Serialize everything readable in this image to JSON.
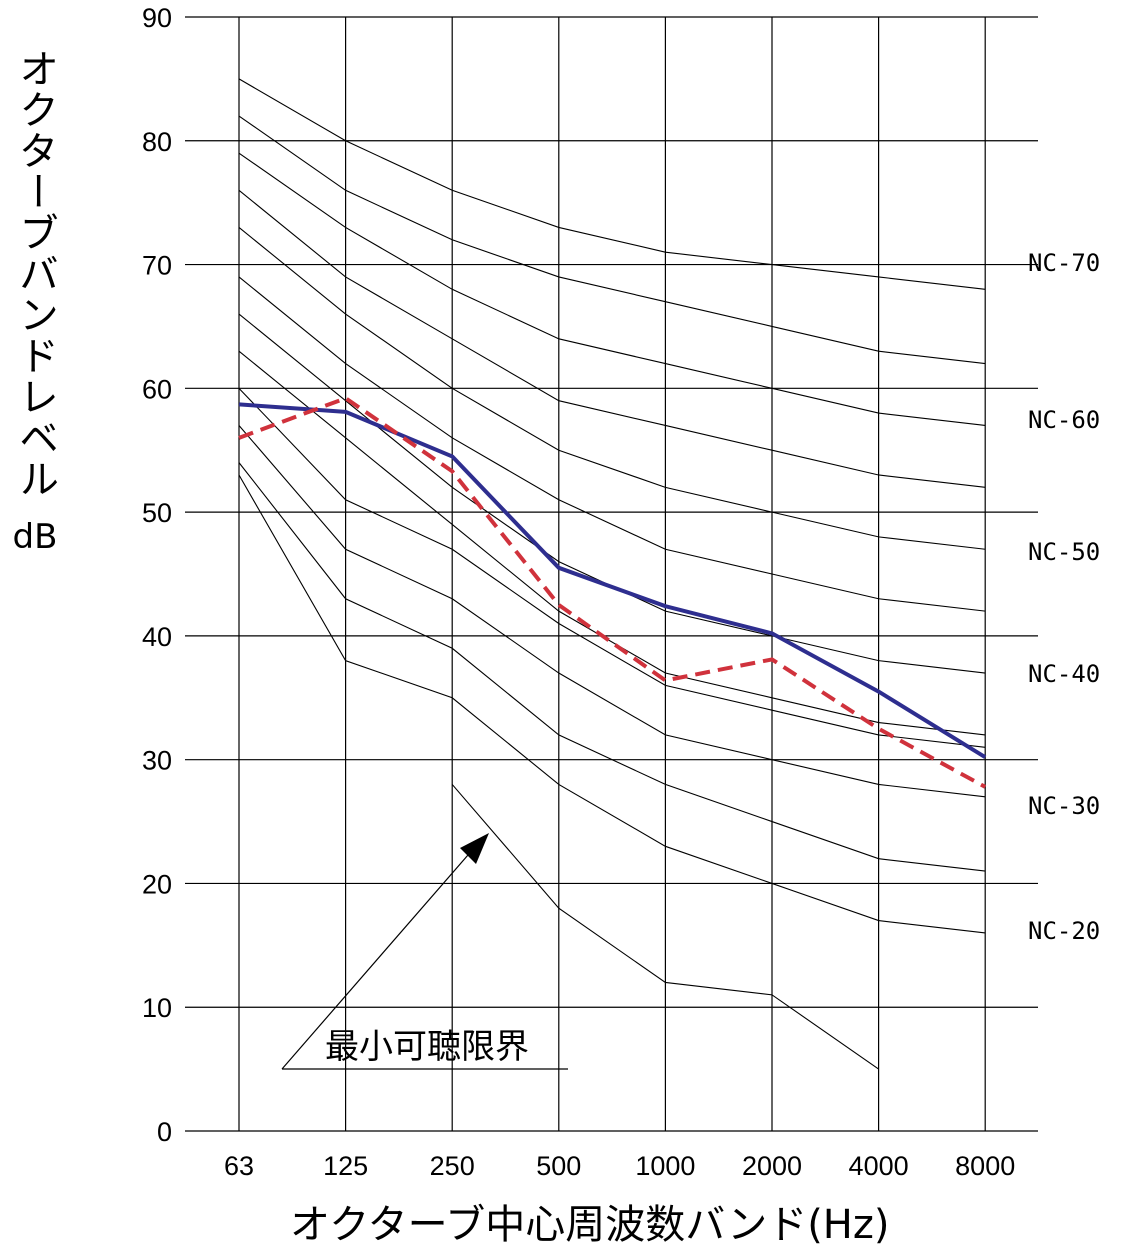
{
  "chart_data": {
    "type": "line",
    "title": "",
    "ylabel": "オクターブバンドレベル",
    "yunit": "dB",
    "xlabel": "オクターブ中心周波数バンド(Hz)",
    "categories": [
      "63",
      "125",
      "250",
      "500",
      "1000",
      "2000",
      "4000",
      "8000"
    ],
    "ylim": [
      0,
      90
    ],
    "yticks": [
      0,
      10,
      20,
      30,
      40,
      50,
      60,
      70,
      80,
      90
    ],
    "grid": true,
    "nc_curves": [
      {
        "label": "",
        "values": [
          85,
          80,
          76,
          73,
          71,
          70,
          69,
          68
        ]
      },
      {
        "label": "NC-70",
        "values": [
          82,
          76,
          72,
          69,
          67,
          65,
          63,
          62
        ]
      },
      {
        "label": "",
        "values": [
          79,
          73,
          68,
          64,
          62,
          60,
          58,
          57
        ]
      },
      {
        "label": "NC-60",
        "values": [
          76,
          69,
          64,
          59,
          57,
          55,
          53,
          52
        ]
      },
      {
        "label": "",
        "values": [
          73,
          66,
          60,
          55,
          52,
          50,
          48,
          47
        ]
      },
      {
        "label": "NC-50",
        "values": [
          69,
          62,
          56,
          51,
          47,
          45,
          43,
          42
        ]
      },
      {
        "label": "",
        "values": [
          66,
          59,
          52,
          46,
          42,
          40,
          38,
          37
        ]
      },
      {
        "label": "NC-40",
        "values": [
          63,
          56,
          49,
          42,
          37,
          35,
          33,
          32
        ]
      },
      {
        "label": "",
        "values": [
          60,
          51,
          47,
          41,
          36,
          34,
          32,
          31
        ]
      },
      {
        "label": "NC-30",
        "values": [
          57,
          47,
          43,
          37,
          32,
          30,
          28,
          27
        ]
      },
      {
        "label": "NC-20",
        "values": [
          54,
          43,
          39,
          32,
          28,
          25,
          22,
          21
        ]
      },
      {
        "label": "",
        "values": [
          53,
          38,
          35,
          28,
          23,
          20,
          17,
          16
        ]
      },
      {
        "label": "",
        "values": [
          null,
          null,
          28,
          18,
          12,
          11,
          5,
          null
        ]
      }
    ],
    "series": [
      {
        "style": "solid",
        "color": "#2e2e8f",
        "values": [
          58.7,
          58.1,
          54.5,
          45.5,
          42.4,
          40.2,
          35.5,
          30.2
        ]
      },
      {
        "style": "dashed",
        "color": "#d0323c",
        "values": [
          56,
          59.2,
          53.3,
          42.5,
          36.4,
          38.1,
          32.5,
          27.8
        ]
      }
    ],
    "annotation": {
      "text": "最小可聴限界"
    }
  }
}
